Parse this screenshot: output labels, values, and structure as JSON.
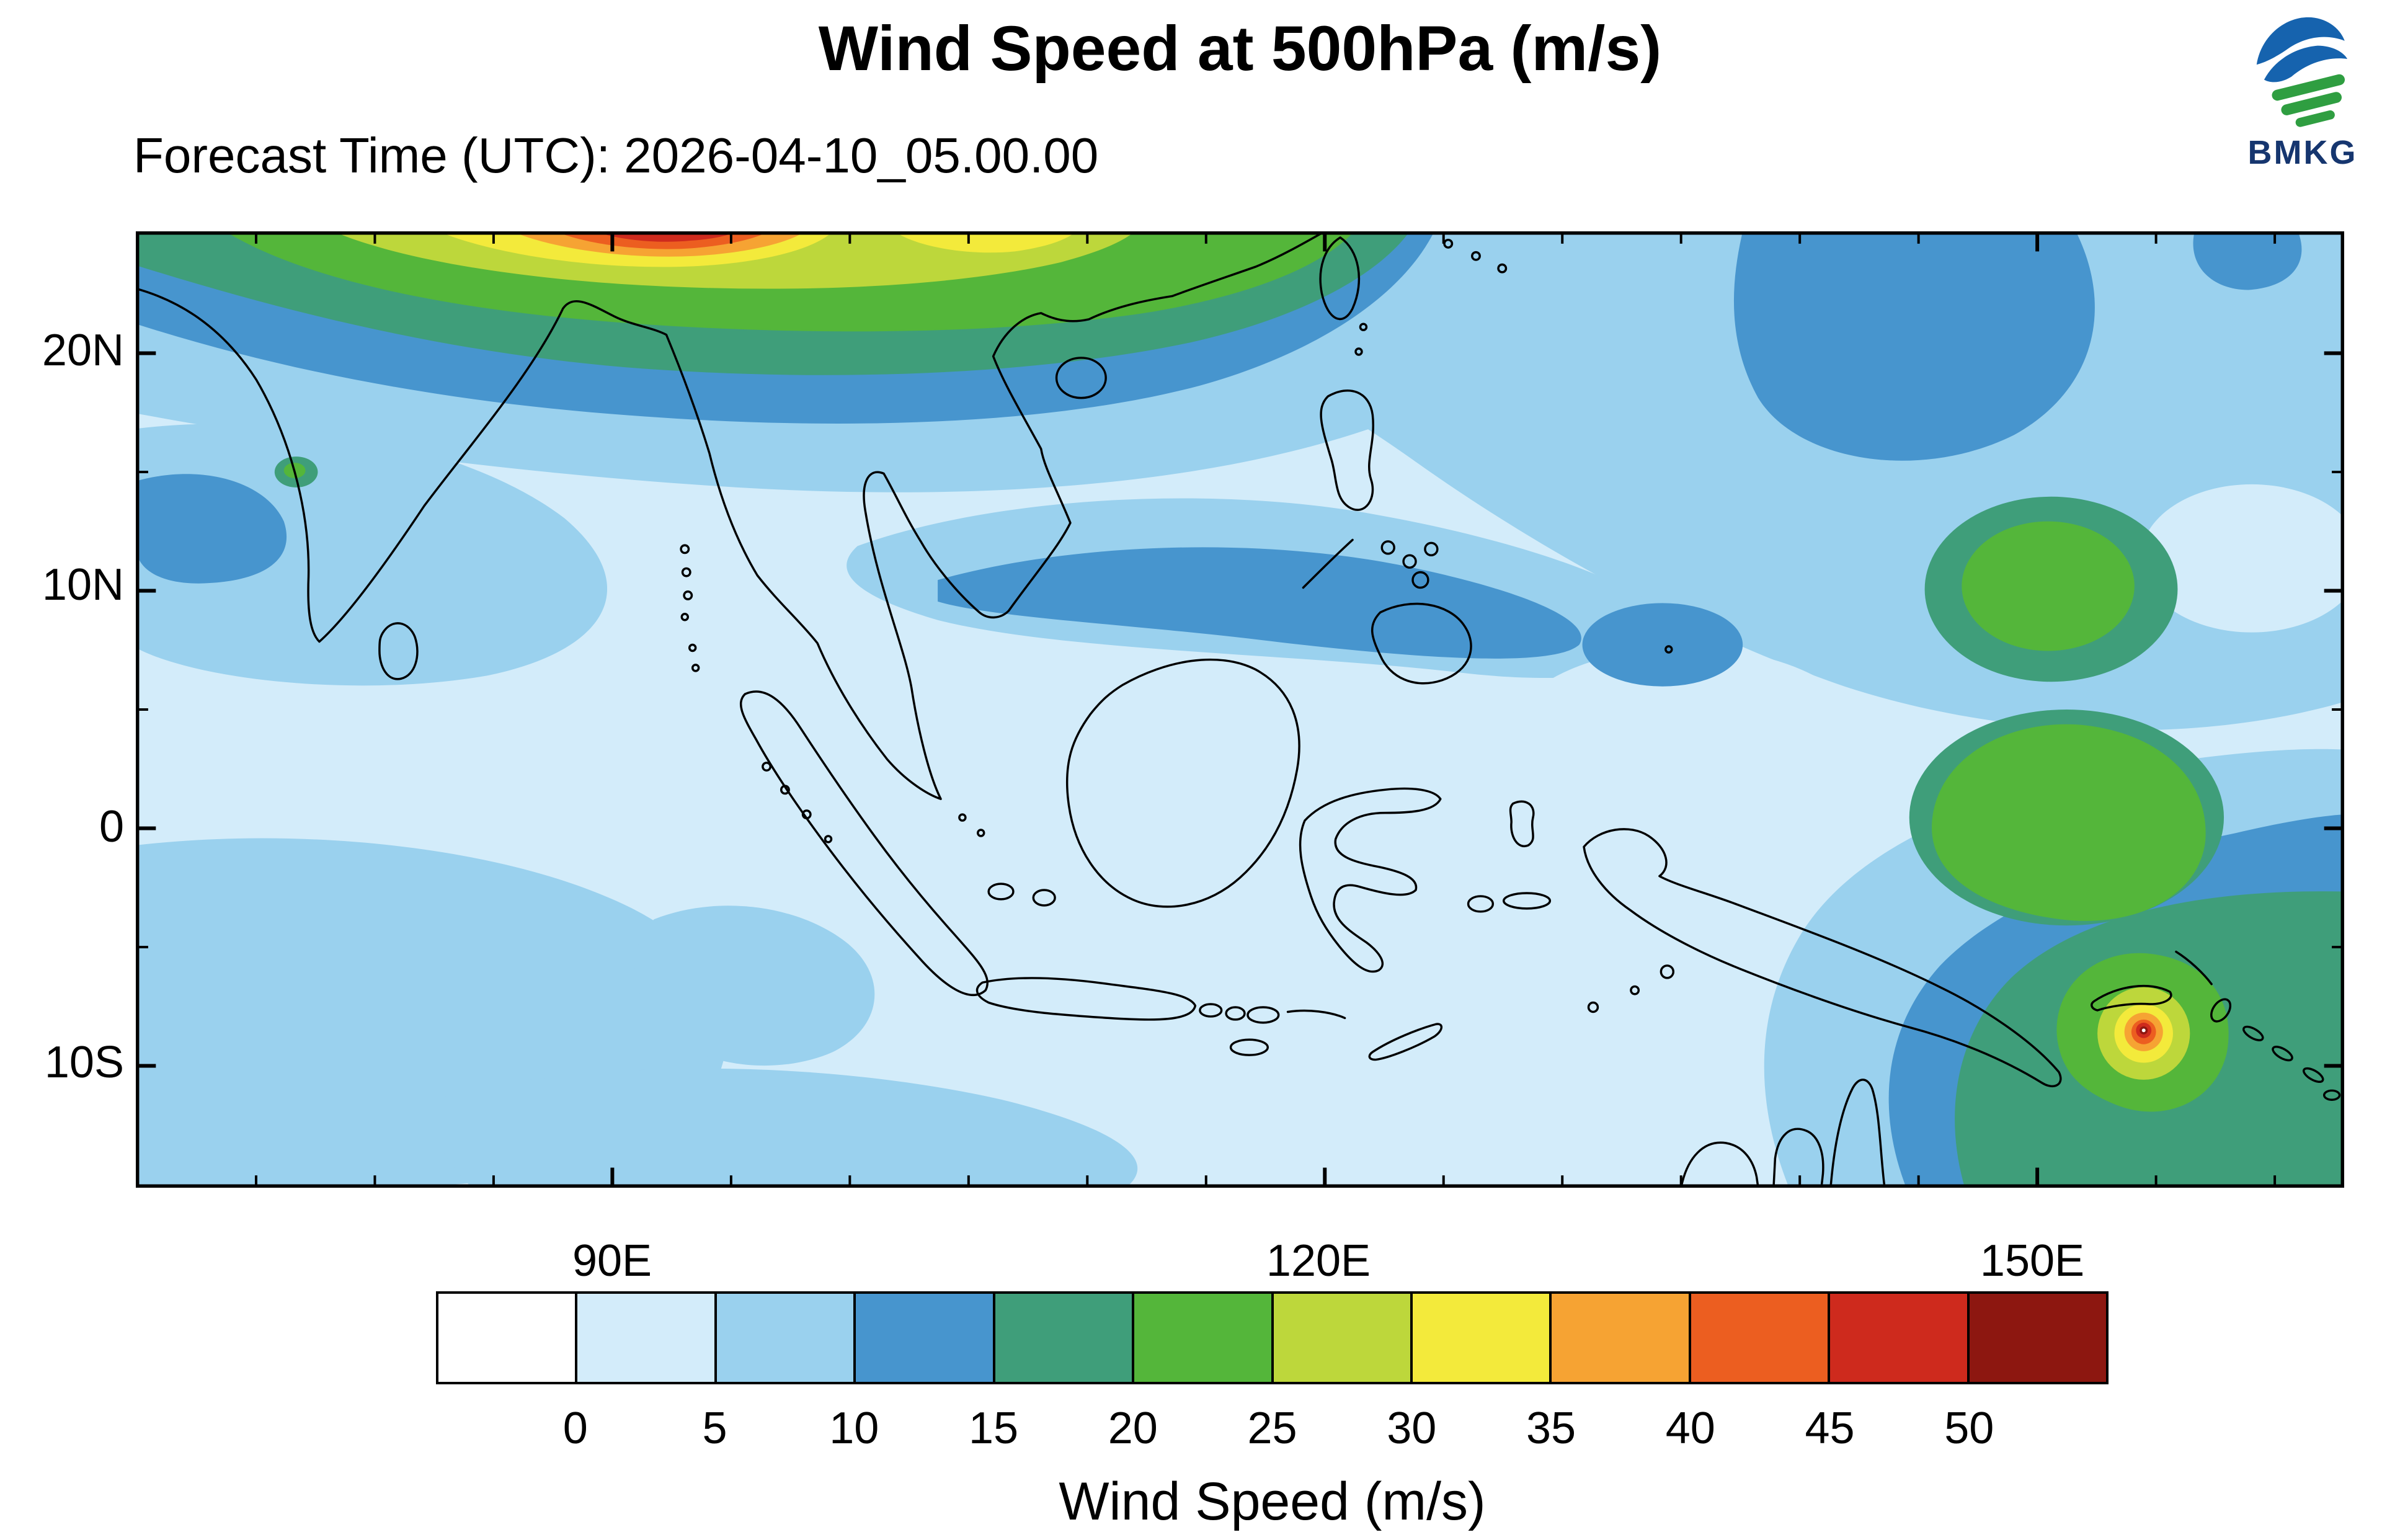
{
  "header": {
    "title": "Wind Speed at 500hPa (m/s)",
    "forecast_label": "Forecast Time (UTC): 2026-04-10_05.00.00"
  },
  "logo": {
    "text": "BMKG",
    "blue": "#1663ae",
    "green": "#2f9e41",
    "text_color": "#16366f"
  },
  "map": {
    "lat_labels": [
      "20N",
      "10N",
      "0",
      "10S"
    ],
    "lon_labels": [
      "90E",
      "120E",
      "150E"
    ]
  },
  "colorbar": {
    "title": "Wind Speed (m/s)",
    "tick_labels": [
      "0",
      "5",
      "10",
      "15",
      "20",
      "25",
      "30",
      "35",
      "40",
      "45",
      "50"
    ],
    "colors": [
      "#ffffff",
      "#d3ecfa",
      "#9ad1ee",
      "#4795ce",
      "#3f9e7a",
      "#54b63a",
      "#bdd73b",
      "#f3ea3b",
      "#f6a333",
      "#ec5e20",
      "#ce2a1d",
      "#8d1710"
    ]
  },
  "chart_data": {
    "type": "heatmap",
    "title": "Wind Speed at 500hPa (m/s)",
    "variable": "wind speed",
    "units": "m/s",
    "contour_levels": [
      0,
      5,
      10,
      15,
      20,
      25,
      30,
      35,
      40,
      45,
      50
    ],
    "lon_ticks": [
      "90E",
      "120E",
      "150E"
    ],
    "lat_ticks": [
      "20N",
      "10N",
      "0",
      "10S"
    ],
    "notable_features": [
      "Jet maximum exceeding 45 m/s along the northern map edge near 88E-95E",
      "Compact maximum exceeding 50 m/s (cyclone signature) near 150E, 9S over eastern New Guinea",
      "20-25 m/s green patches near 148-152E between 10N and the equator",
      "Background winds mostly 0-10 m/s over the Indonesian maritime continent"
    ]
  }
}
